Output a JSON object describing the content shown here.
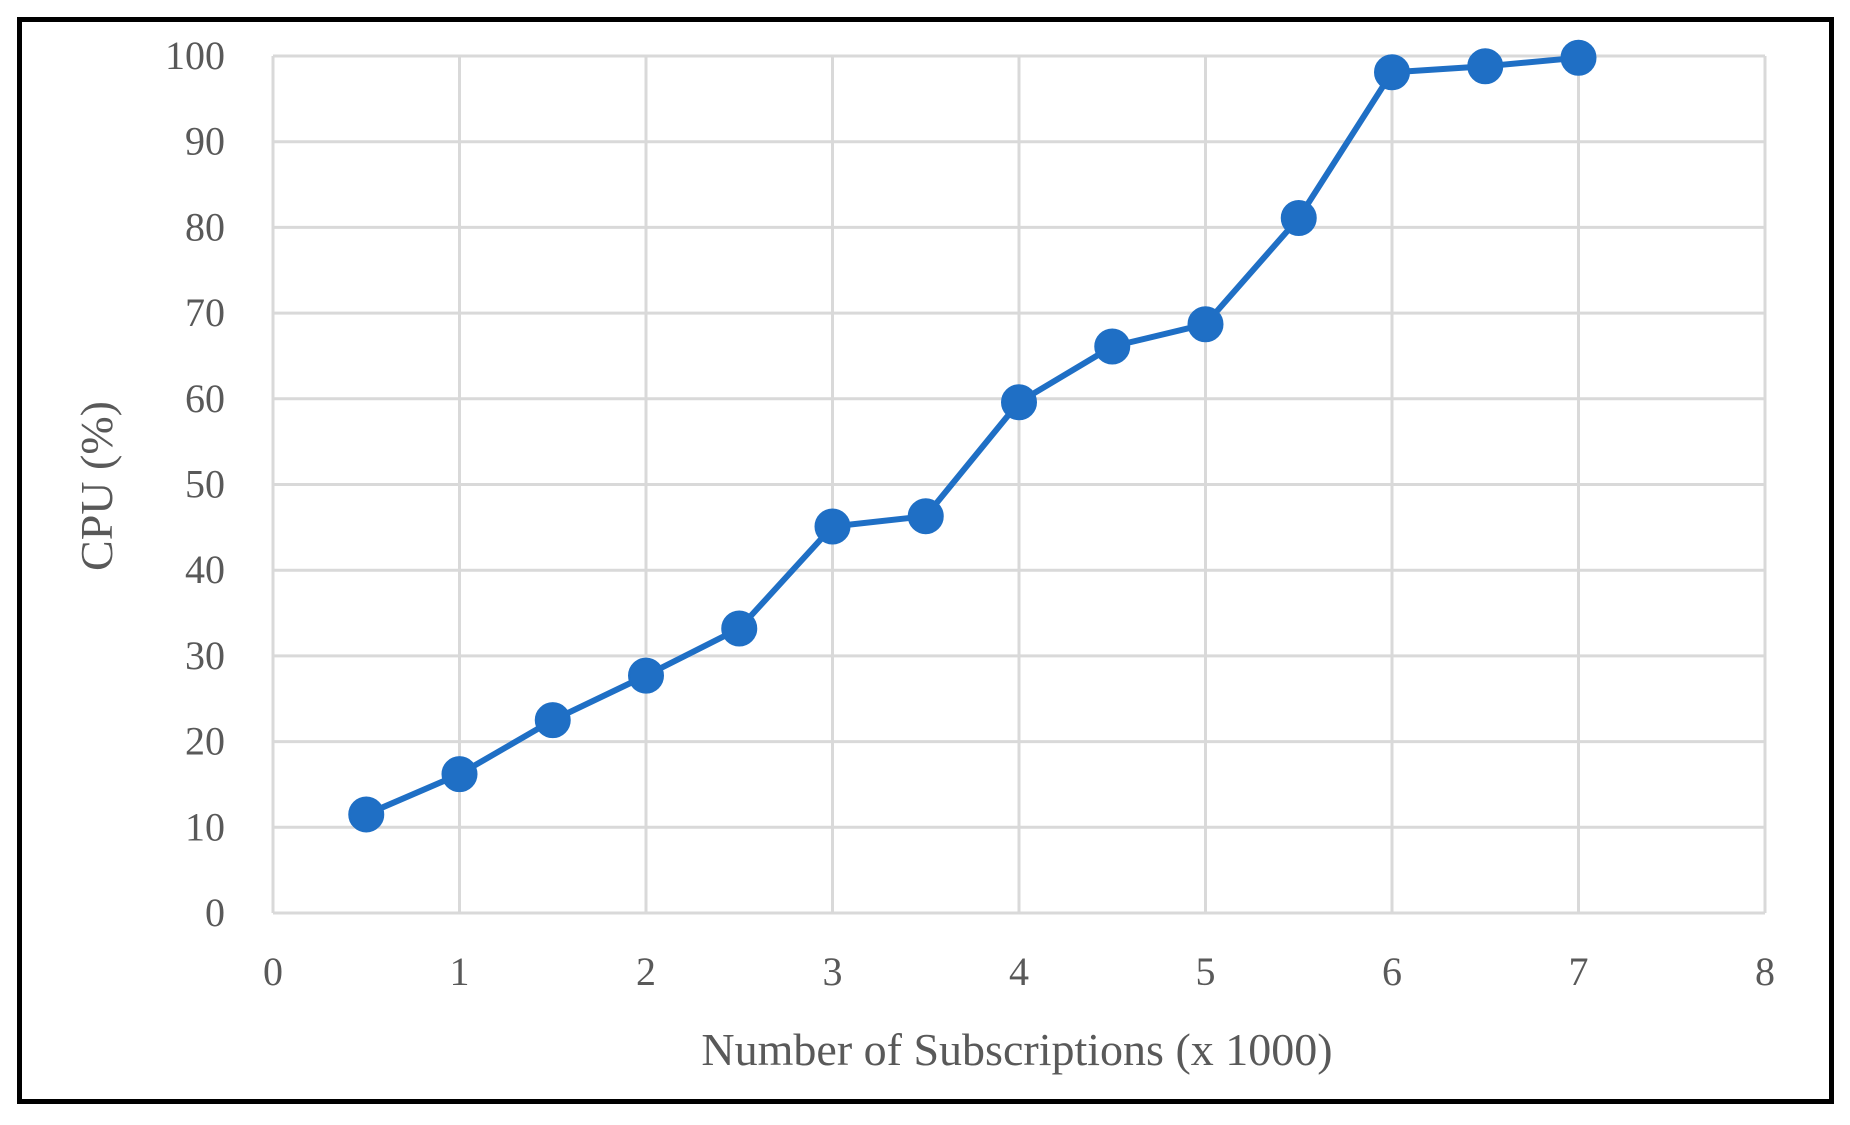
{
  "chart_data": {
    "type": "line",
    "title": "",
    "xlabel": "Number of Subscriptions (x 1000)",
    "ylabel": "CPU (%)",
    "xlim": [
      0,
      8
    ],
    "ylim": [
      0,
      100
    ],
    "xticks": [
      0,
      1,
      2,
      3,
      4,
      5,
      6,
      7,
      8
    ],
    "yticks": [
      0,
      10,
      20,
      30,
      40,
      50,
      60,
      70,
      80,
      90,
      100
    ],
    "grid": true,
    "legend": "none",
    "color": "#1f6fc5",
    "series": [
      {
        "x": [
          0.5,
          1,
          1.5,
          2,
          2.5,
          3,
          3.5,
          4,
          4.5,
          5,
          5.5,
          6,
          6.5,
          7
        ],
        "y": [
          11.5,
          16.2,
          22.5,
          27.7,
          33.2,
          45.1,
          46.3,
          59.6,
          66.1,
          68.7,
          81.1,
          98.1,
          98.8,
          99.8
        ]
      }
    ]
  }
}
